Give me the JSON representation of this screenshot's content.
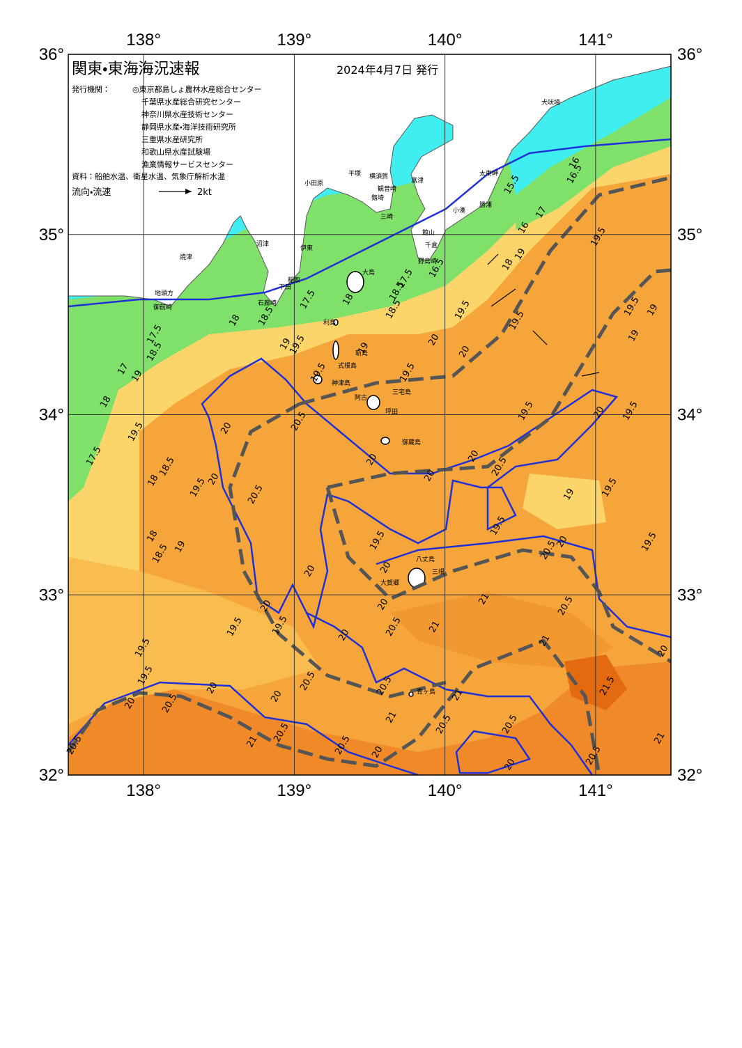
{
  "header": {
    "title": "関東・東海海況速報",
    "date": "2024年4月7日 発行",
    "issuer_label": "発行機関：",
    "issuers": [
      "◎東京都島しょ農林水産総合センター",
      "千葉県水産総合研究センター",
      "神奈川県水産技術センター",
      "静岡県水産・海洋技術研究所",
      "三重県水産研究所",
      "和歌山県水産試験場",
      "漁業情報サービスセンター"
    ],
    "source": "資料：船舶水温、衛星水温、気象庁解析水温",
    "legend": {
      "label": "流向・流速",
      "scale": "2kt"
    }
  },
  "axes": {
    "lon_range": [
      137.5,
      141.5
    ],
    "lat_range": [
      32,
      36
    ],
    "lon_ticks": [
      {
        "value": 138,
        "label": "138°"
      },
      {
        "value": 139,
        "label": "139°"
      },
      {
        "value": 140,
        "label": "140°"
      },
      {
        "value": 141,
        "label": "141°"
      }
    ],
    "lat_ticks": [
      {
        "value": 32,
        "label": "32°"
      },
      {
        "value": 33,
        "label": "33°"
      },
      {
        "value": 34,
        "label": "34°"
      },
      {
        "value": 35,
        "label": "35°"
      },
      {
        "value": 36,
        "label": "36°"
      }
    ]
  },
  "places": [
    "犬吠埼",
    "太東岬",
    "勝浦",
    "小湊",
    "富津",
    "館山",
    "千倉",
    "野島崎",
    "観音崎",
    "横須賀",
    "平塚",
    "剱埼",
    "三崎",
    "小田原",
    "大島",
    "伊東",
    "沼津",
    "稲取",
    "下田",
    "石廊崎",
    "焼津",
    "地頭方",
    "御前崎",
    "利島",
    "新島",
    "式根島",
    "神津島",
    "三宅島",
    "阿古",
    "坪田",
    "御蔵島",
    "八丈島",
    "三根",
    "大賀郷",
    "青ヶ島"
  ],
  "contour_labels": [
    "16",
    "16.5",
    "15.5",
    "17",
    "16",
    "19",
    "18",
    "19.5",
    "17.5",
    "16.5",
    "18",
    "18.5",
    "18.5",
    "17.5",
    "18.5",
    "18",
    "19.5",
    "19",
    "19",
    "19.5",
    "19.5",
    "19.5",
    "20",
    "20",
    "19.5",
    "19.5",
    "19",
    "19",
    "17.5",
    "18.5",
    "17",
    "19",
    "18",
    "19.5",
    "17.5",
    "18.5",
    "18",
    "19.5",
    "19.5",
    "20",
    "19.5",
    "20",
    "20.5",
    "20",
    "20",
    "20",
    "20.5",
    "19",
    "19.5",
    "20",
    "20.5",
    "19.5",
    "19.5",
    "20",
    "20.5",
    "19.5",
    "18",
    "18.5",
    "19",
    "20",
    "20",
    "20",
    "21",
    "20.5",
    "20",
    "19.5",
    "19.5",
    "20.5",
    "21",
    "20",
    "21",
    "20",
    "19.5",
    "19.5",
    "20",
    "20.5",
    "20",
    "20.5",
    "20.5",
    "20",
    "21",
    "21.5",
    "21",
    "20.5",
    "20.5",
    "20.5",
    "21",
    "20.5",
    "21",
    "20",
    "20.5",
    "20.5",
    "20"
  ]
}
